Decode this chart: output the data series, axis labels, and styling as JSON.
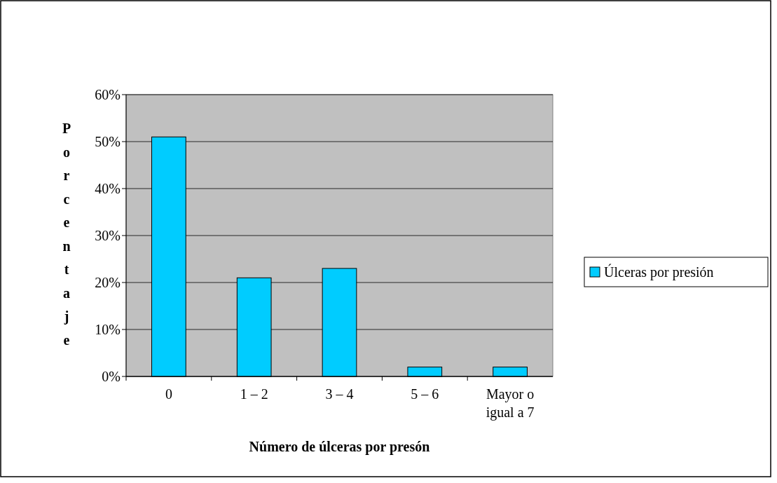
{
  "chart_data": {
    "type": "bar",
    "xlabel": "Número de úlceras por presón",
    "ylabel": "Porcentaje",
    "categories": [
      "0",
      "1 – 2",
      "3 – 4",
      "5 – 6",
      "Mayor o igual a 7"
    ],
    "series": [
      {
        "name": "Úlceras por presión",
        "color": "#00ccff",
        "values": [
          51,
          21,
          23,
          2,
          2
        ]
      }
    ],
    "ylim": [
      0,
      60
    ],
    "yticks": [
      {
        "value": 0,
        "label": "0%"
      },
      {
        "value": 10,
        "label": "10%"
      },
      {
        "value": 20,
        "label": "20%"
      },
      {
        "value": 30,
        "label": "30%"
      },
      {
        "value": 40,
        "label": "40%"
      },
      {
        "value": 50,
        "label": "50%"
      },
      {
        "value": 60,
        "label": "60%"
      }
    ],
    "grid": "y",
    "legend": "right"
  }
}
